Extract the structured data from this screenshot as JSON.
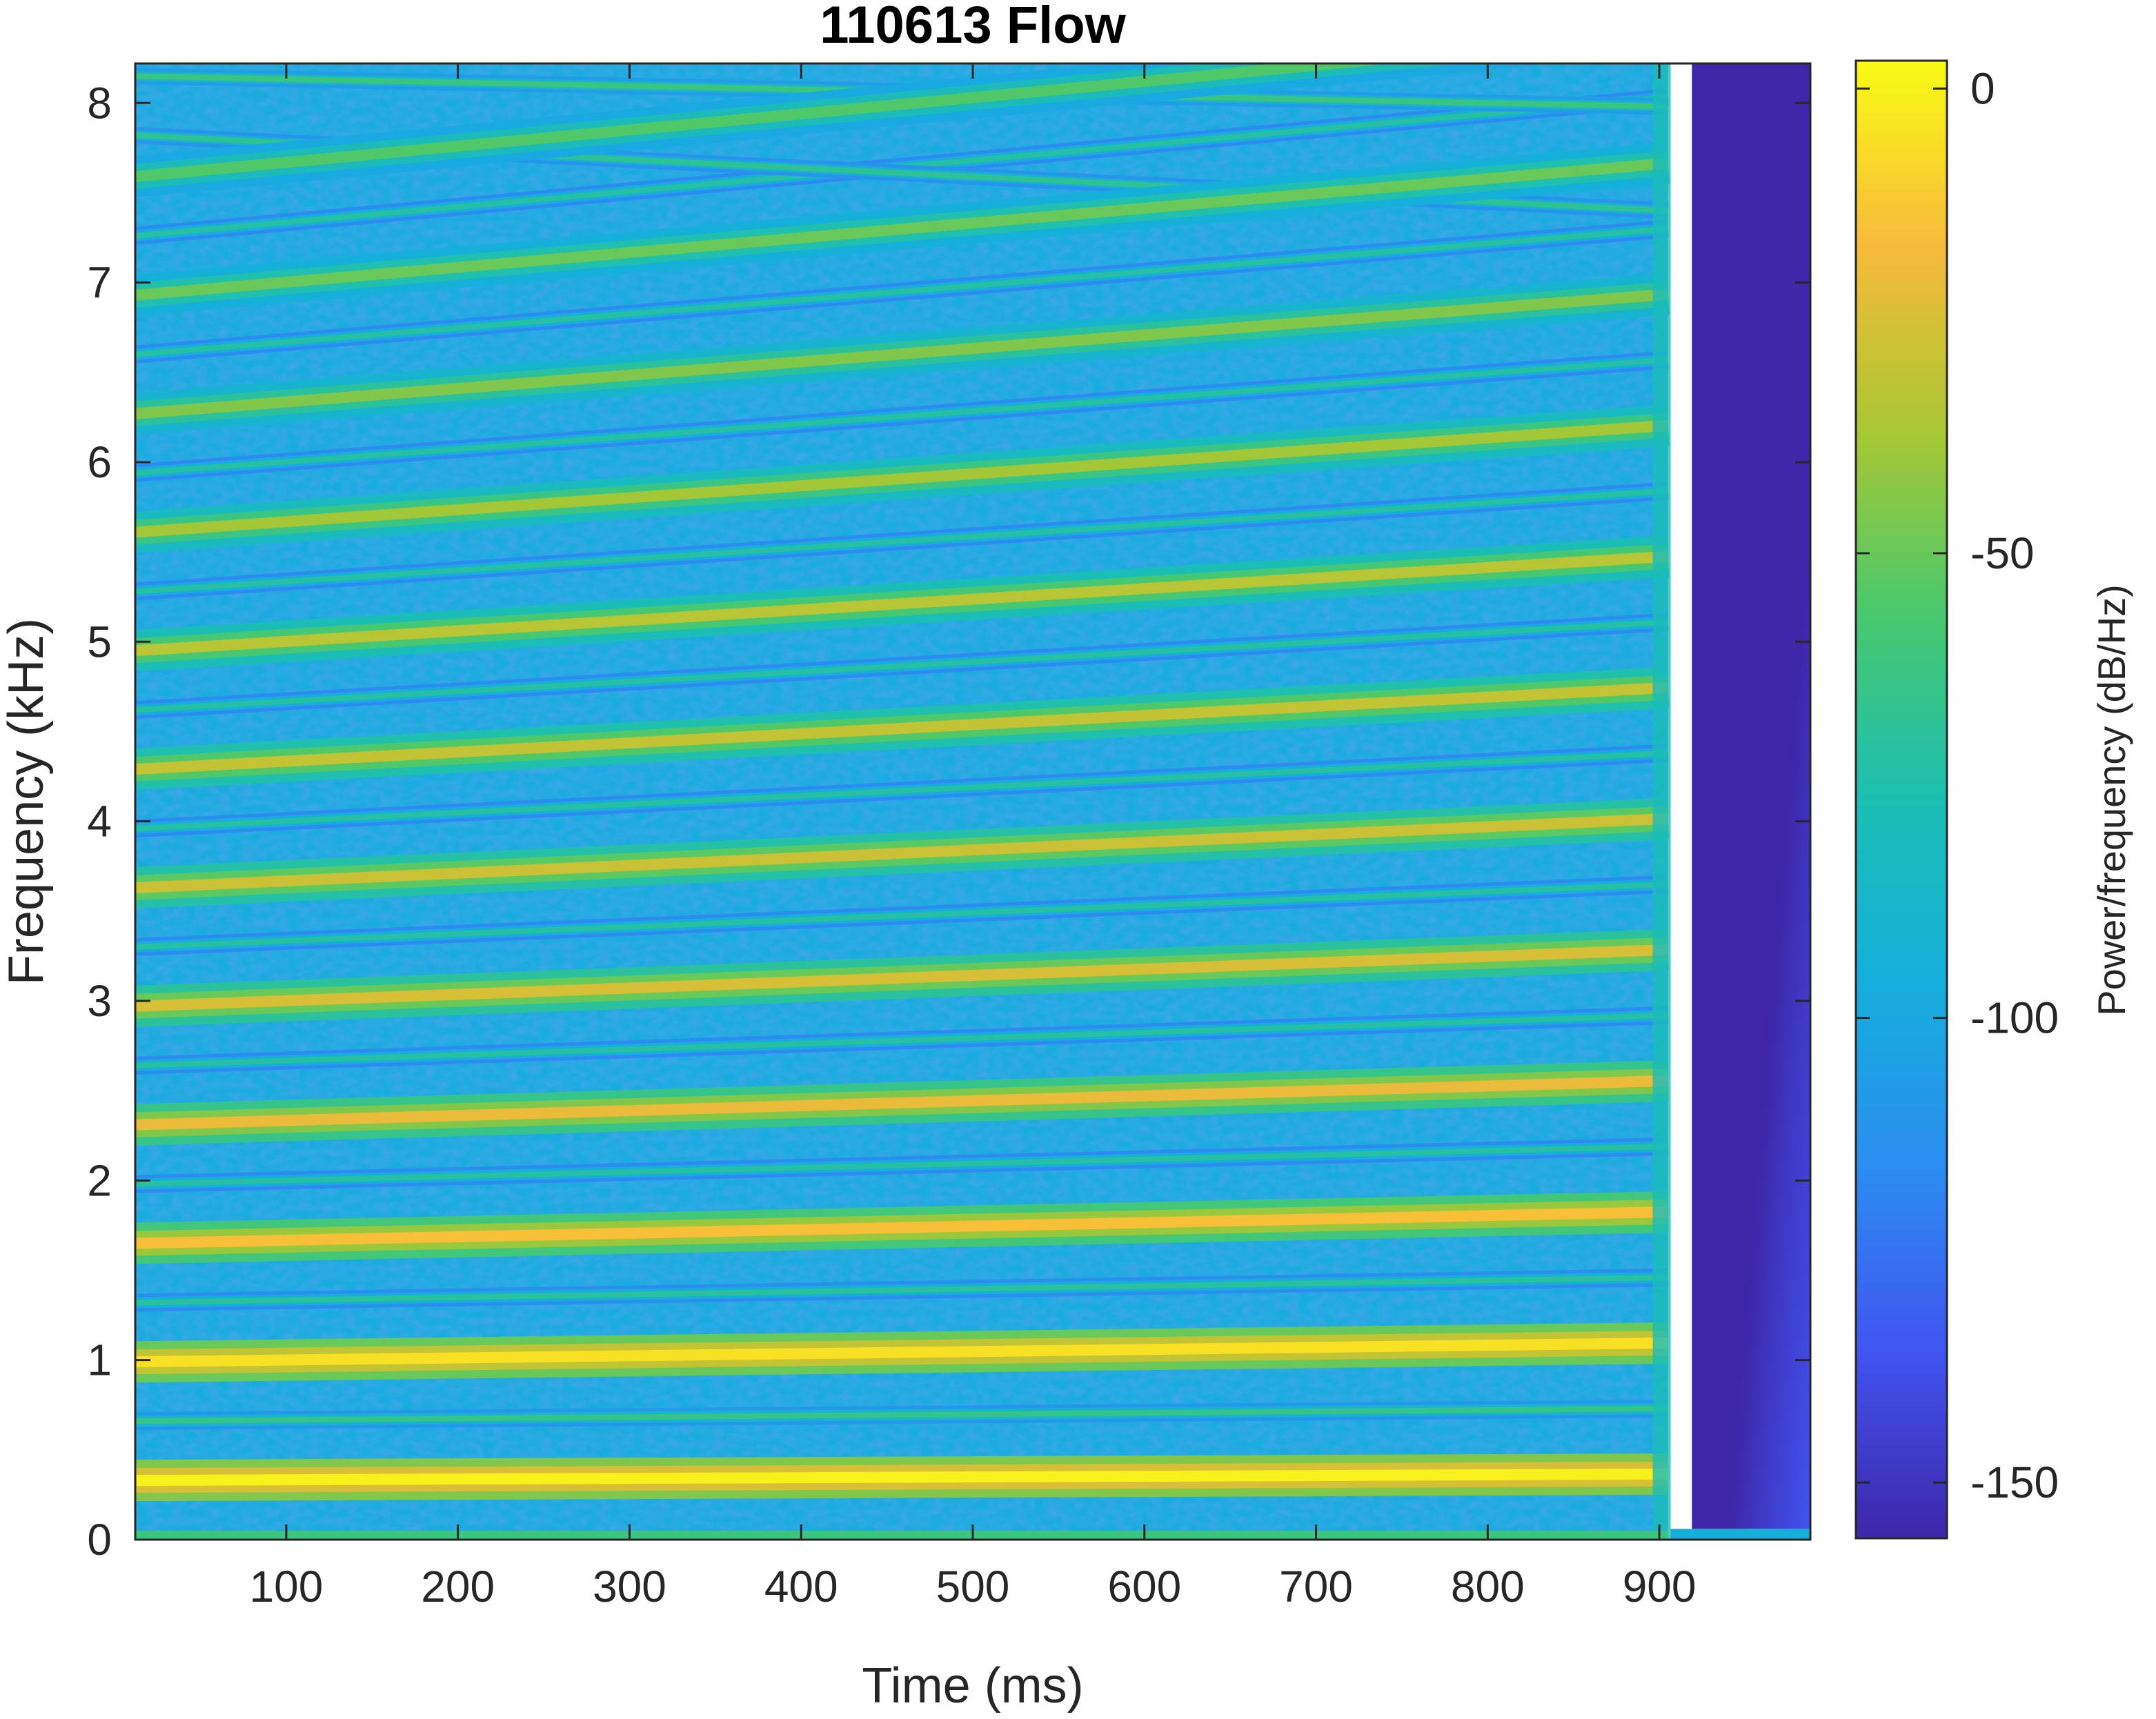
{
  "chart_data": {
    "type": "heatmap",
    "title": "110613 Flow",
    "xlabel": "Time (ms)",
    "ylabel": "Frequency (kHz)",
    "colorbar_label": "Power/frequency (dB/Hz)",
    "xlim": [
      12,
      988
    ],
    "ylim": [
      0,
      8.22
    ],
    "clim": [
      -156,
      3
    ],
    "x_ticks": [
      100,
      200,
      300,
      400,
      500,
      600,
      700,
      800,
      900
    ],
    "x_tick_labels": [
      "100",
      "200",
      "300",
      "400",
      "500",
      "600",
      "700",
      "800",
      "900"
    ],
    "y_ticks": [
      0,
      1,
      2,
      3,
      4,
      5,
      6,
      7,
      8
    ],
    "y_tick_labels": [
      "0",
      "1",
      "2",
      "3",
      "4",
      "5",
      "6",
      "7",
      "8"
    ],
    "colorbar_ticks": [
      0,
      -50,
      -100,
      -150
    ],
    "colorbar_tick_labels": [
      "0",
      "-50",
      "-100",
      "-150"
    ],
    "signal_end_ms": 905,
    "colormap": "parula",
    "colormap_stops": [
      "#3e26a8",
      "#4154f0",
      "#2c8cf0",
      "#16aedc",
      "#1dbeb3",
      "#48c86e",
      "#a9c733",
      "#f7ba3c",
      "#f9fb15"
    ],
    "fundamental_start_khz": 0.33,
    "fundamental_end_khz": 0.365,
    "harmonics": [
      {
        "n": 1,
        "start_khz": 0.33,
        "end_khz": 0.365,
        "level_db": 0
      },
      {
        "n": 3,
        "start_khz": 0.99,
        "end_khz": 1.095,
        "level_db": -5
      },
      {
        "n": 5,
        "start_khz": 1.65,
        "end_khz": 1.825,
        "level_db": -15
      },
      {
        "n": 7,
        "start_khz": 2.31,
        "end_khz": 2.555,
        "level_db": -20
      },
      {
        "n": 9,
        "start_khz": 2.97,
        "end_khz": 3.285,
        "level_db": -25
      },
      {
        "n": 11,
        "start_khz": 3.63,
        "end_khz": 4.015,
        "level_db": -28
      },
      {
        "n": 13,
        "start_khz": 4.29,
        "end_khz": 4.745,
        "level_db": -30
      },
      {
        "n": 15,
        "start_khz": 4.95,
        "end_khz": 5.475,
        "level_db": -33
      },
      {
        "n": 17,
        "start_khz": 5.61,
        "end_khz": 6.205,
        "level_db": -38
      },
      {
        "n": 19,
        "start_khz": 6.27,
        "end_khz": 6.935,
        "level_db": -45
      },
      {
        "n": 21,
        "start_khz": 6.93,
        "end_khz": 7.665,
        "level_db": -50
      },
      {
        "n": 23,
        "start_khz": 7.59,
        "end_khz": 8.395,
        "level_db": -55
      }
    ],
    "even_harmonics": [
      {
        "n": 2,
        "start_khz": 0.66,
        "end_khz": 0.73,
        "level_db": -65
      },
      {
        "n": 4,
        "start_khz": 1.32,
        "end_khz": 1.46,
        "level_db": -70
      },
      {
        "n": 6,
        "start_khz": 1.98,
        "end_khz": 2.19,
        "level_db": -72
      },
      {
        "n": 8,
        "start_khz": 2.64,
        "end_khz": 2.92,
        "level_db": -72
      },
      {
        "n": 10,
        "start_khz": 3.3,
        "end_khz": 3.65,
        "level_db": -72
      },
      {
        "n": 12,
        "start_khz": 3.96,
        "end_khz": 4.38,
        "level_db": -72
      },
      {
        "n": 14,
        "start_khz": 4.62,
        "end_khz": 5.11,
        "level_db": -72
      },
      {
        "n": 16,
        "start_khz": 5.28,
        "end_khz": 5.84,
        "level_db": -72
      },
      {
        "n": 18,
        "start_khz": 5.94,
        "end_khz": 6.57,
        "level_db": -72
      },
      {
        "n": 20,
        "start_khz": 6.6,
        "end_khz": 7.3,
        "level_db": -72
      },
      {
        "n": 22,
        "start_khz": 7.26,
        "end_khz": 8.03,
        "level_db": -72
      }
    ],
    "aliased_lines": [
      {
        "start_khz": 8.15,
        "end_khz": 7.98,
        "level_db": -62
      },
      {
        "start_khz": 7.82,
        "end_khz": 7.4,
        "level_db": -68
      }
    ]
  }
}
